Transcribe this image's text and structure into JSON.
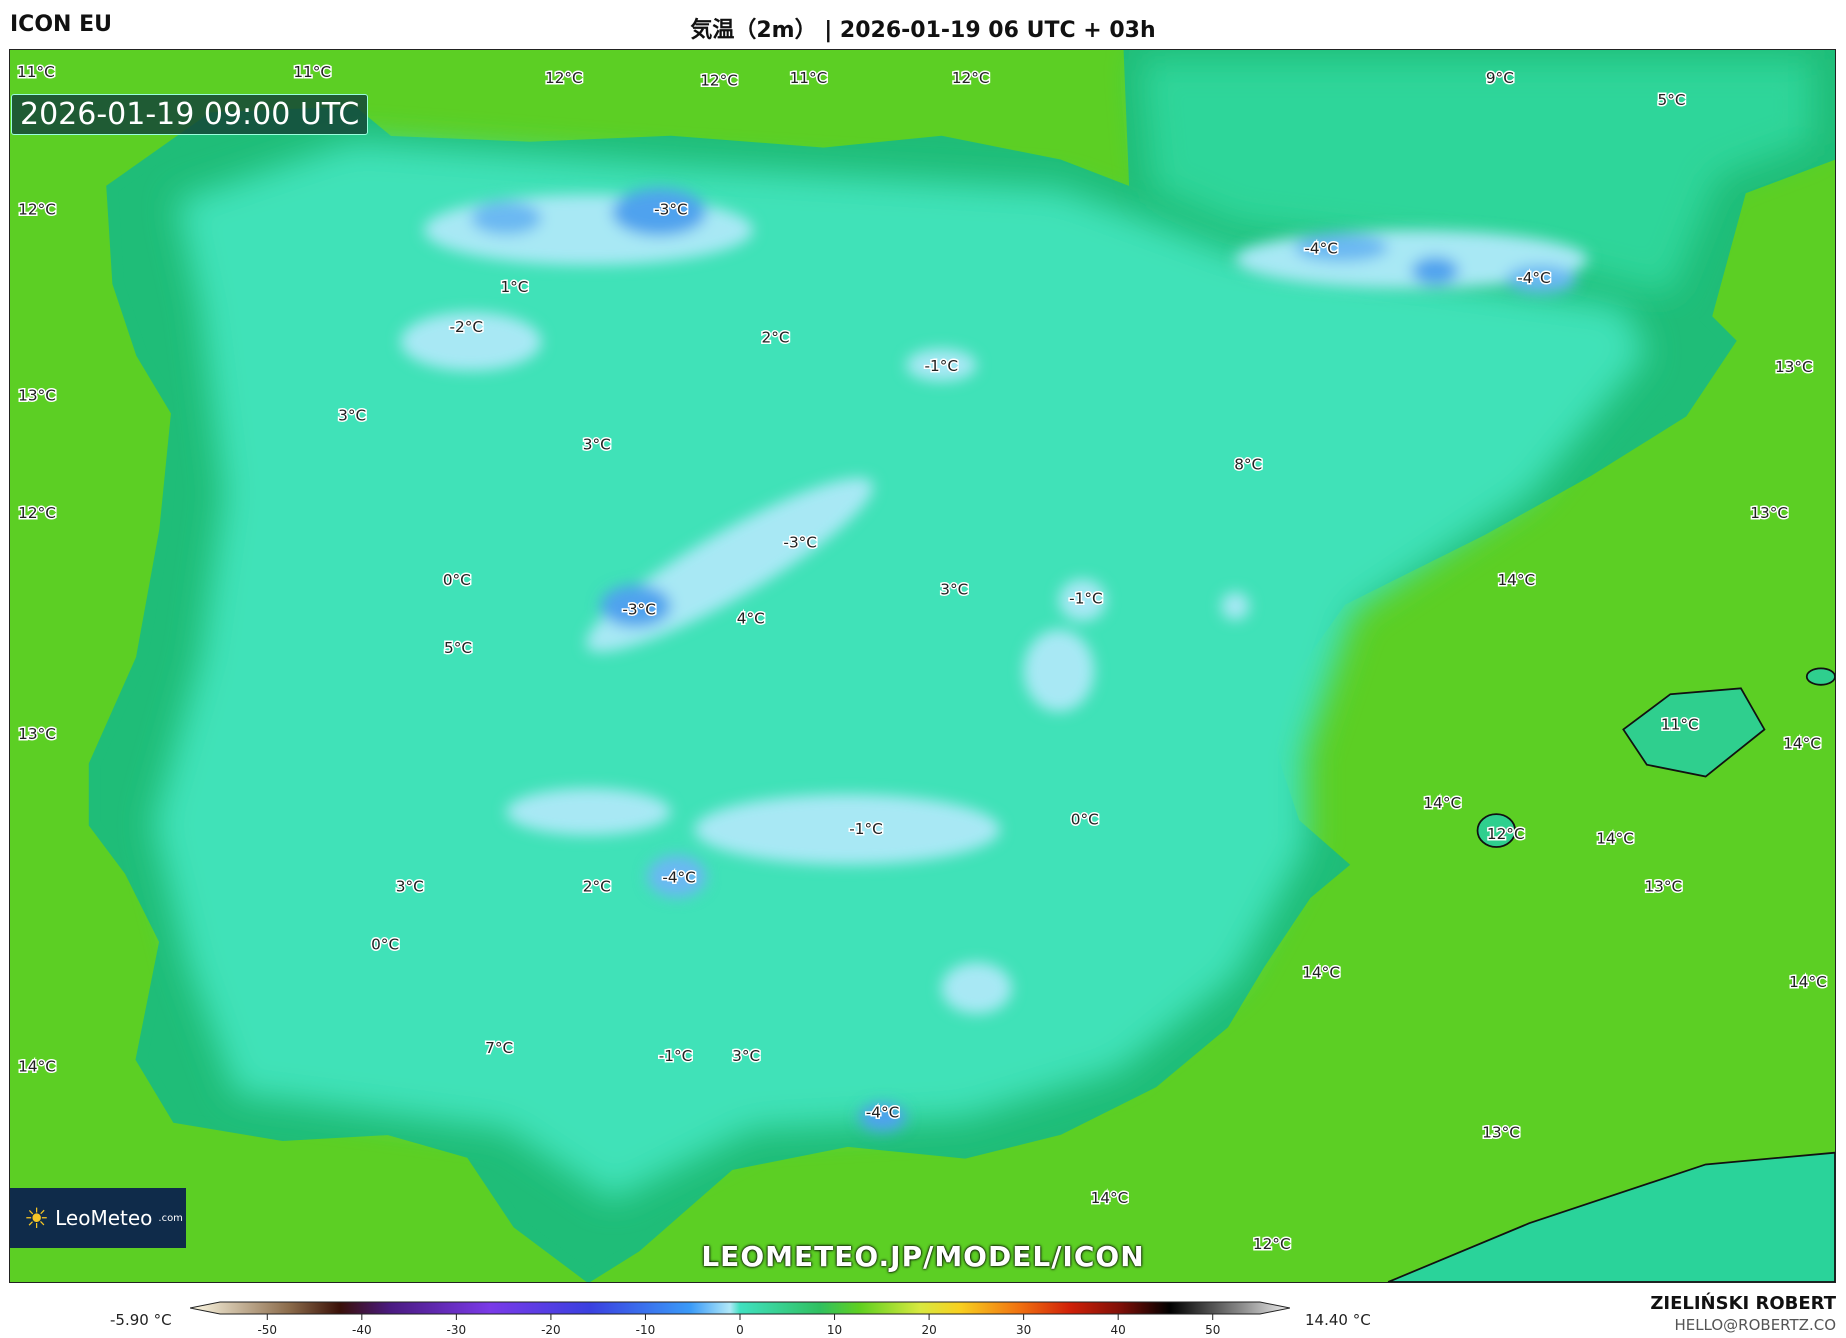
{
  "header": {
    "model": "ICON EU",
    "title": "気温（2m） | 2026-01-19 06 UTC + 03h"
  },
  "map": {
    "valid_time": "2026-01-19 09:00 UTC",
    "watermark": "LEOMETEO.JP/MODEL/ICON",
    "logo": {
      "text": "LeoMeteo",
      "suffix": ".com"
    },
    "colors": {
      "sea": "#5ccf24",
      "land": "#3fe2b8",
      "coast_rim": "#1fbd78",
      "cold_light": "#a8e8f4",
      "cold_core": "#4fa2ee"
    },
    "labels": [
      "11°C",
      "11°C",
      "12°C",
      "12°C",
      "11°C",
      "12°C",
      "9°C",
      "5°C",
      "12°C",
      "-3°C",
      "-4°C",
      "-4°C",
      "1°C",
      "-2°C",
      "2°C",
      "-1°C",
      "13°C",
      "13°C",
      "3°C",
      "3°C",
      "8°C",
      "12°C",
      "13°C",
      "-3°C",
      "0°C",
      "14°C",
      "3°C",
      "-1°C",
      "-3°C",
      "4°C",
      "5°C",
      "13°C",
      "11°C",
      "14°C",
      "14°C",
      "0°C",
      "12°C",
      "-1°C",
      "14°C",
      "-4°C",
      "3°C",
      "2°C",
      "13°C",
      "0°C",
      "14°C",
      "14°C",
      "7°C",
      "-1°C",
      "3°C",
      "14°C",
      "-4°C",
      "13°C",
      "14°C",
      "12°C"
    ]
  },
  "colorbar": {
    "min_label": "-5.90 °C",
    "max_label": "14.40 °C",
    "ticks": [
      "-50",
      "-40",
      "-30",
      "-20",
      "-10",
      "0",
      "10",
      "20",
      "30",
      "40",
      "50"
    ],
    "range": [
      -55,
      55
    ]
  },
  "footer": {
    "author": "ZIELIŃSKI ROBERT",
    "email": "HELLO@ROBERTZ.CO"
  }
}
